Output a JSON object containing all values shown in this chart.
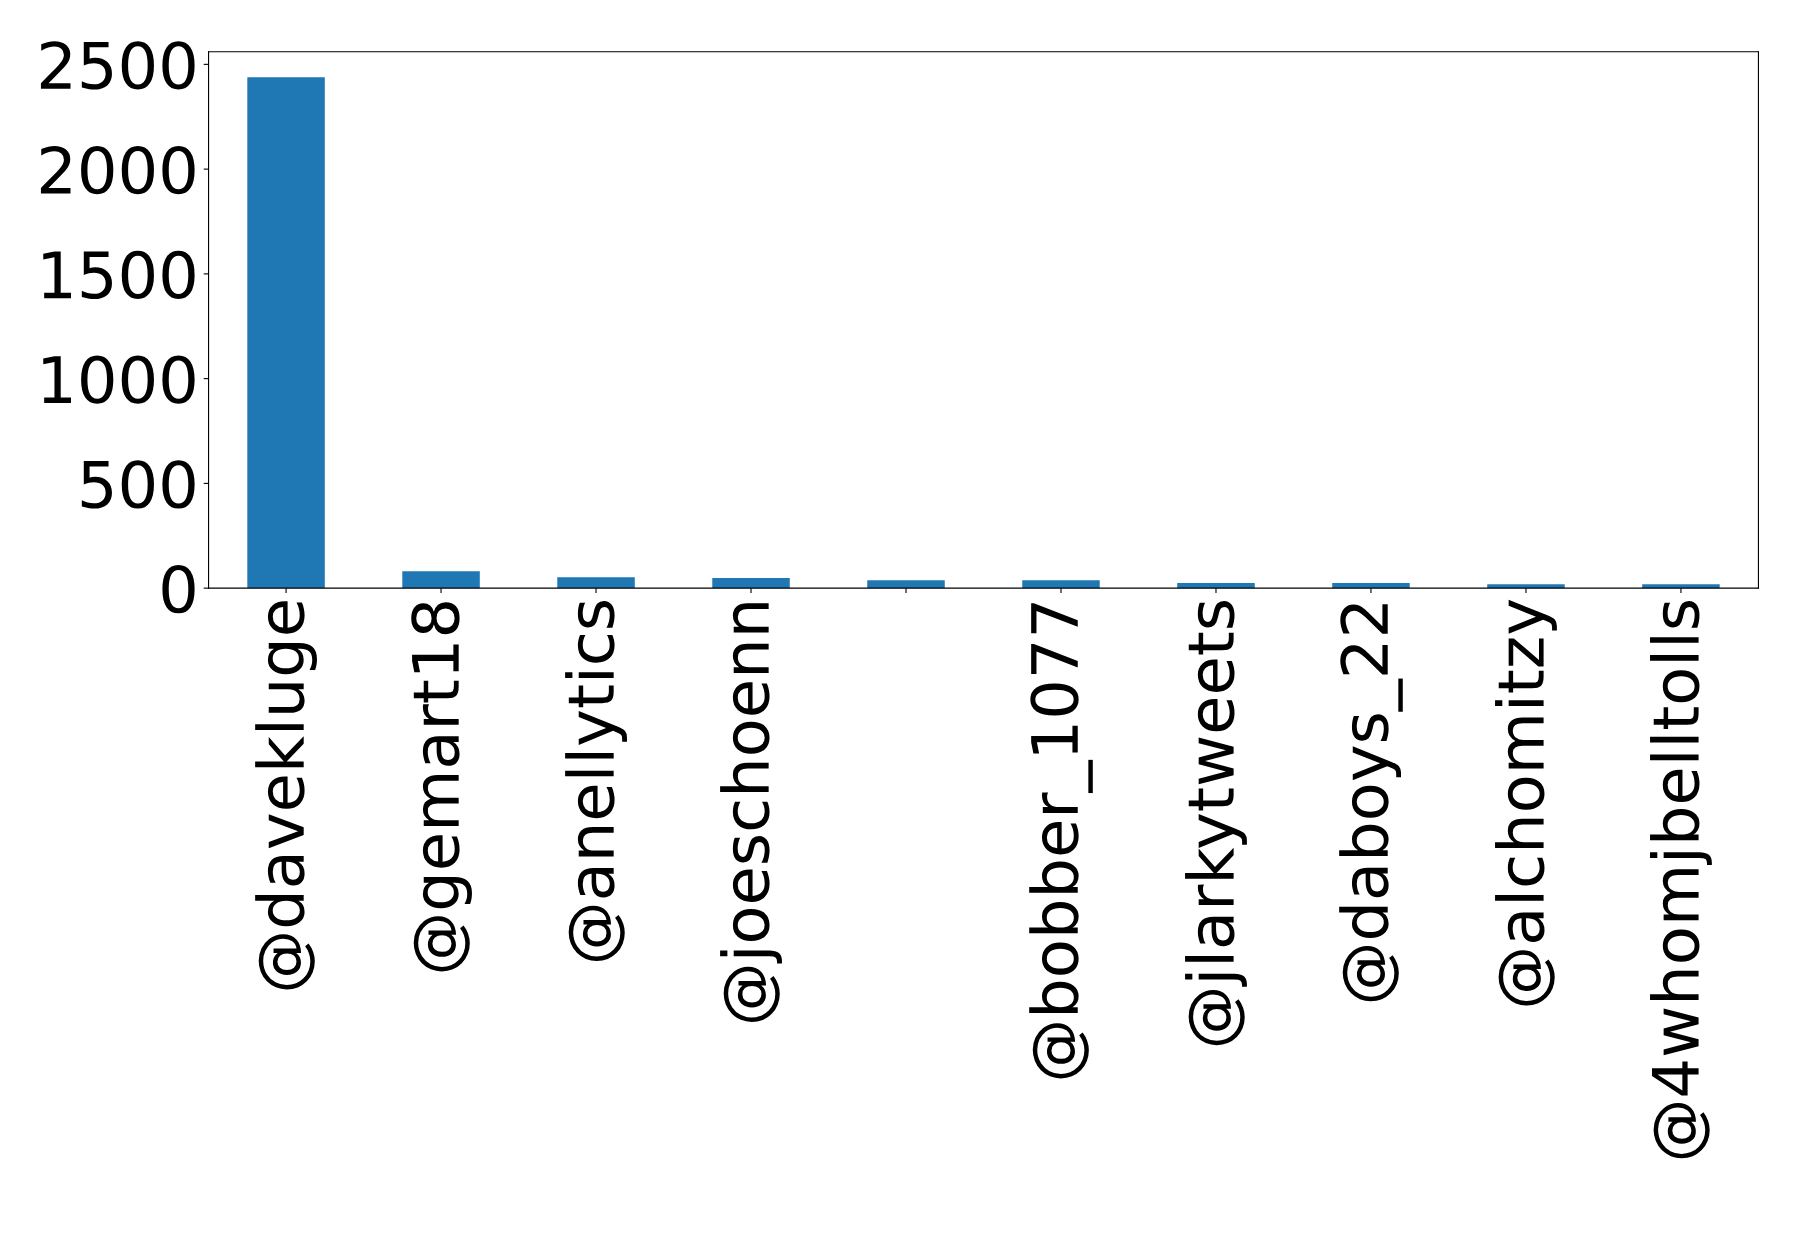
{
  "chart_data": {
    "type": "bar",
    "categories": [
      "@davekluge",
      "@gemart18",
      "@anellytics",
      "@joeschoenn",
      null,
      "@bobber_1077",
      "@jlarkytweets",
      "@daboys_22",
      "@alchomitzy",
      "@4whomjbelltolls"
    ],
    "values": [
      2438,
      81,
      52,
      48,
      38,
      38,
      24,
      24,
      19,
      19
    ],
    "color": "#1f77b4",
    "ylim": [
      0,
      2560
    ],
    "yticks": [
      0,
      500,
      1000,
      1500,
      2000,
      2500
    ],
    "grid": false,
    "legend": false
  }
}
